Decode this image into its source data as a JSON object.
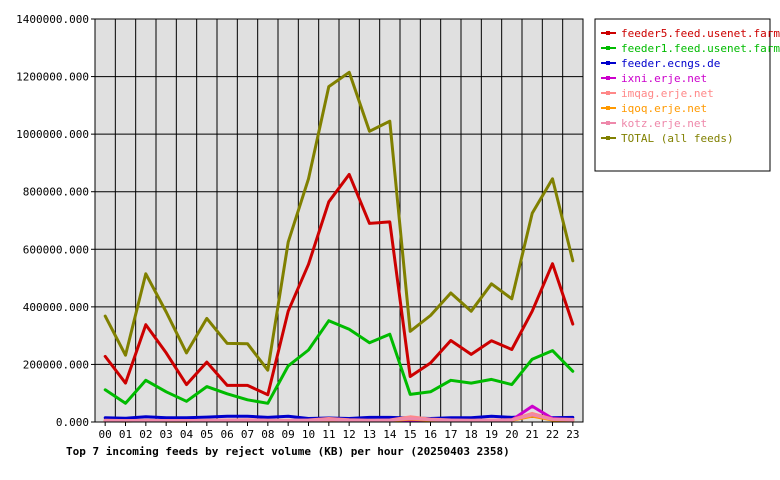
{
  "chart_data": {
    "type": "line",
    "title": "Top 7 incoming feeds by reject volume (KB) per hour (20250403 2358)",
    "xlabel": "",
    "ylabel": "",
    "ylim": [
      0,
      1400000
    ],
    "y_ticks": [
      0,
      200000,
      400000,
      600000,
      800000,
      1000000,
      1200000,
      1400000
    ],
    "y_tick_labels": [
      "0.000",
      "200000.000",
      "400000.000",
      "600000.000",
      "800000.000",
      "1000000.000",
      "1200000.000",
      "1400000.000"
    ],
    "categories": [
      "00",
      "01",
      "02",
      "03",
      "04",
      "05",
      "06",
      "07",
      "08",
      "09",
      "10",
      "11",
      "12",
      "13",
      "14",
      "15",
      "16",
      "17",
      "18",
      "19",
      "20",
      "21",
      "22",
      "23"
    ],
    "grid": true,
    "legend_position": "right",
    "series": [
      {
        "name": "feeder5.feed.usenet.farm",
        "color": "#cc0000",
        "values": [
          228000,
          135000,
          338000,
          240000,
          130000,
          208000,
          127000,
          127000,
          95000,
          385000,
          548000,
          765000,
          860000,
          690000,
          695000,
          158000,
          205000,
          283000,
          235000,
          282000,
          252000,
          385000,
          550000,
          340000
        ]
      },
      {
        "name": "feeder1.feed.usenet.farm",
        "color": "#00bb00",
        "values": [
          112000,
          65000,
          145000,
          105000,
          72000,
          123000,
          98000,
          77000,
          65000,
          195000,
          250000,
          352000,
          322000,
          275000,
          305000,
          96000,
          105000,
          145000,
          135000,
          148000,
          130000,
          218000,
          248000,
          176000
        ]
      },
      {
        "name": "feeder.ecngs.de",
        "color": "#0000cc",
        "values": [
          15000,
          13000,
          18000,
          15000,
          15000,
          17000,
          20000,
          20000,
          16000,
          20000,
          12000,
          14000,
          12000,
          16000,
          16000,
          14000,
          12000,
          15000,
          15000,
          20000,
          16000,
          20000,
          15000,
          16000
        ]
      },
      {
        "name": "ixni.erje.net",
        "color": "#cc00cc",
        "values": [
          5000,
          4000,
          5000,
          4000,
          4000,
          5000,
          6000,
          7000,
          5000,
          5000,
          5000,
          6000,
          5000,
          5000,
          6000,
          7000,
          6000,
          5000,
          5000,
          6000,
          7000,
          55000,
          12000,
          8000
        ]
      },
      {
        "name": "imqag.erje.net",
        "color": "#ff8888",
        "values": [
          6000,
          5000,
          6000,
          5000,
          5000,
          6000,
          7000,
          8000,
          6000,
          6000,
          7000,
          12000,
          8000,
          6000,
          7000,
          18000,
          10000,
          7000,
          6000,
          7000,
          8000,
          30000,
          10000,
          9000
        ]
      },
      {
        "name": "iqoq.erje.net",
        "color": "#ff9900",
        "values": [
          4000,
          3000,
          4000,
          3000,
          3000,
          4000,
          5000,
          6000,
          4000,
          4000,
          5000,
          6000,
          5000,
          4000,
          5000,
          10000,
          6000,
          5000,
          4000,
          5000,
          6000,
          20000,
          7000,
          5000
        ]
      },
      {
        "name": "kotz.erje.net",
        "color": "#ee88aa",
        "values": [
          5000,
          4000,
          5000,
          4000,
          4000,
          5000,
          6000,
          7000,
          5000,
          5000,
          6000,
          8000,
          6000,
          5000,
          6000,
          12000,
          8000,
          6000,
          5000,
          6000,
          7000,
          25000,
          9000,
          7000
        ]
      },
      {
        "name": "TOTAL (all feeds)",
        "color": "#808000",
        "values": [
          368000,
          232000,
          515000,
          382000,
          240000,
          360000,
          273000,
          272000,
          180000,
          625000,
          845000,
          1165000,
          1215000,
          1010000,
          1045000,
          315000,
          370000,
          448000,
          385000,
          480000,
          428000,
          725000,
          845000,
          560000
        ]
      }
    ]
  }
}
